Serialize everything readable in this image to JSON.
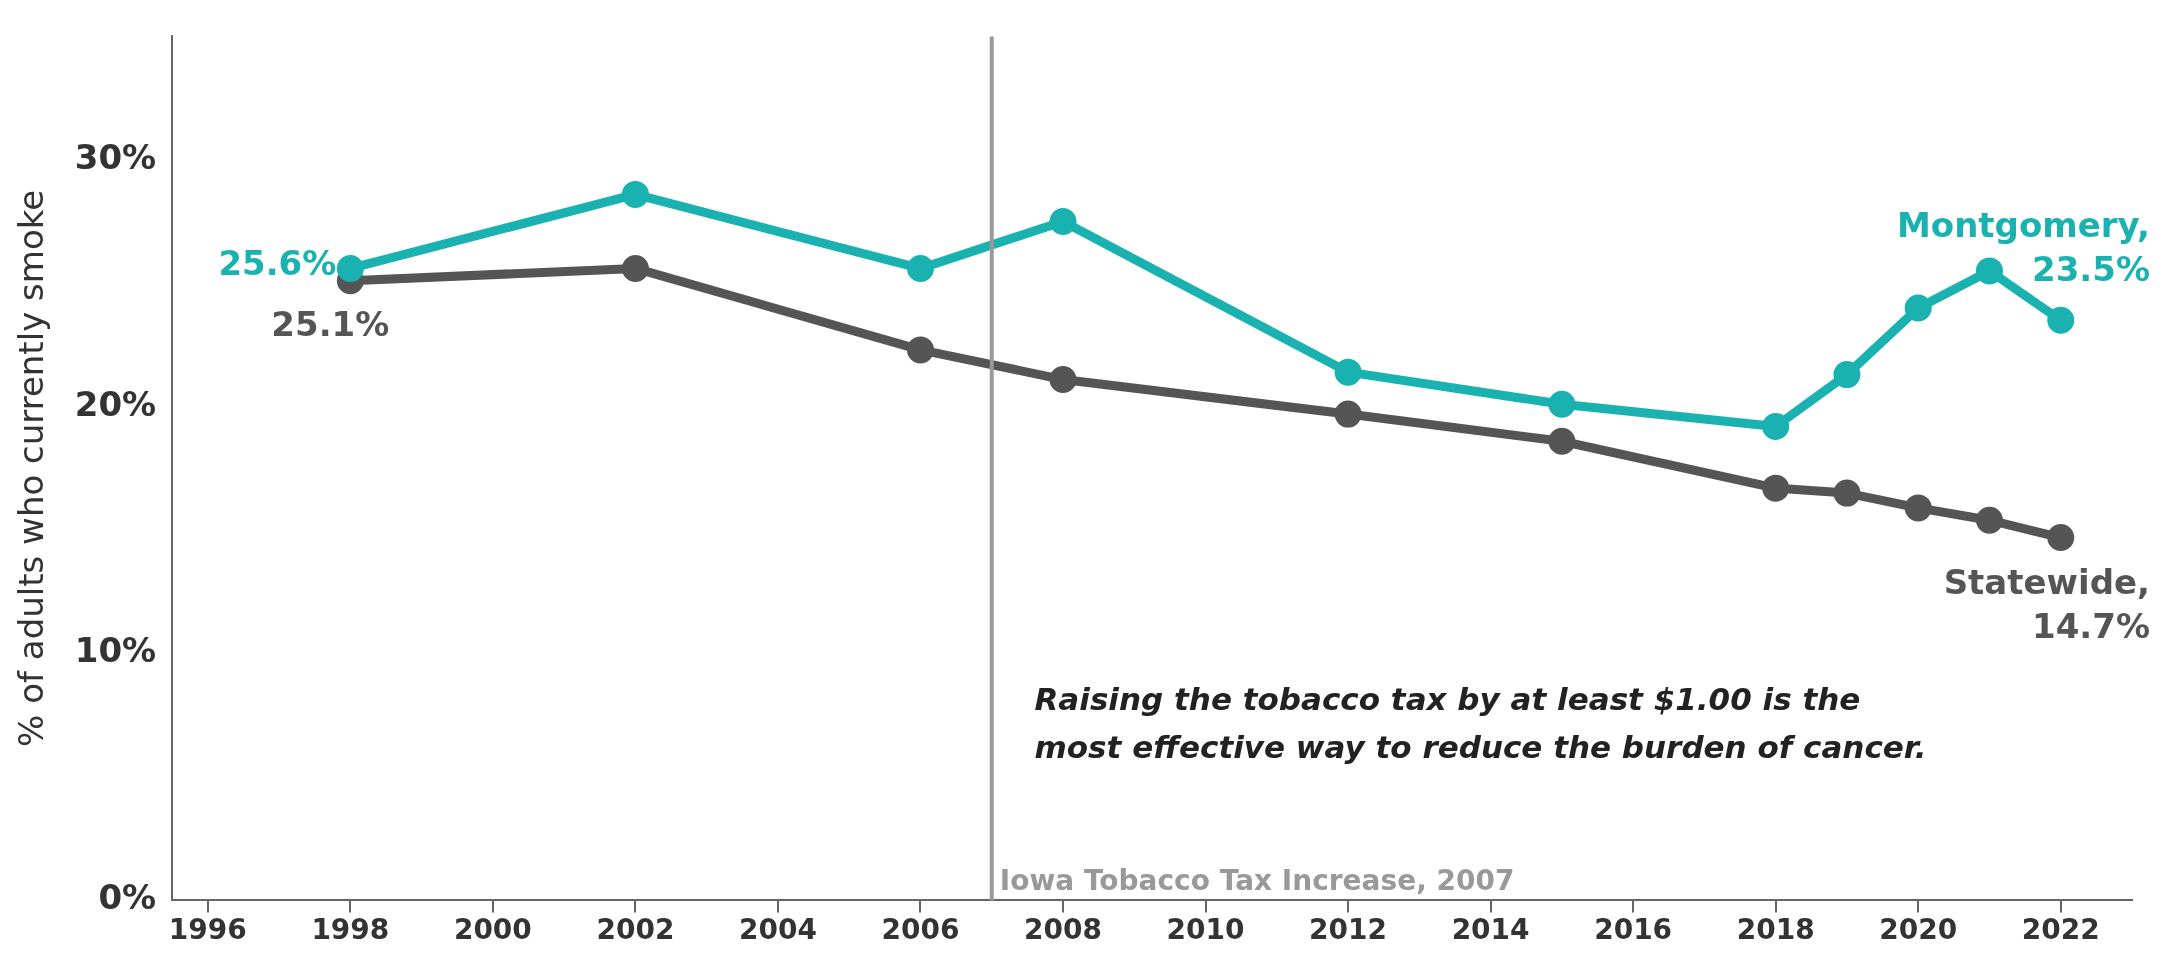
{
  "chart_data": {
    "type": "line",
    "ylabel": "% of adults who currently smoke",
    "x": [
      1998,
      2002,
      2006,
      2008,
      2012,
      2015,
      2018,
      2019,
      2020,
      2021,
      2022
    ],
    "series": [
      {
        "name": "Montgomery,",
        "color": "#1ab2b0",
        "values": [
          25.6,
          28.6,
          25.6,
          27.5,
          21.4,
          20.1,
          19.2,
          21.3,
          24.0,
          25.5,
          23.5
        ],
        "value_labels": [
          "25.6%",
          null,
          null,
          null,
          null,
          null,
          null,
          null,
          null,
          null,
          "23.5%"
        ]
      },
      {
        "name": "Statewide,",
        "color": "#555555",
        "values": [
          25.1,
          25.6,
          22.3,
          21.1,
          19.7,
          18.6,
          16.7,
          16.5,
          15.9,
          15.4,
          14.7
        ],
        "value_labels": [
          "25.1%",
          null,
          null,
          null,
          null,
          null,
          null,
          null,
          null,
          null,
          "14.7%"
        ]
      }
    ],
    "xlim": [
      1995.5,
      2023
    ],
    "xticks": [
      1996,
      1998,
      2000,
      2002,
      2004,
      2006,
      2008,
      2010,
      2012,
      2014,
      2016,
      2018,
      2020,
      2022
    ],
    "ylim": [
      0,
      35
    ],
    "yticks": [
      {
        "value": 0,
        "label": "0%"
      },
      {
        "value": 10,
        "label": "10%"
      },
      {
        "value": 20,
        "label": "20%"
      },
      {
        "value": 30,
        "label": "30%"
      }
    ],
    "ref_lines": [
      {
        "axis": "x",
        "value": 2007,
        "label": "Iowa Tobacco Tax Increase, 2007",
        "color": "#999999"
      }
    ],
    "annotations": [
      "Raising the tobacco tax by at least $1.00 is the most effective way to reduce the burden of cancer."
    ],
    "grid": false,
    "legend": false,
    "marker": "circle",
    "line_style": "solid"
  }
}
